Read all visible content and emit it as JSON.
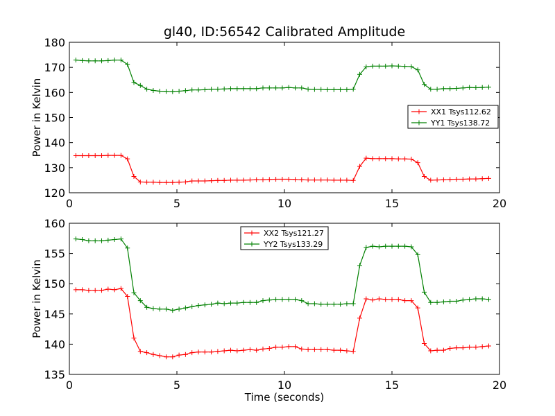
{
  "figure": {
    "title": "gl40, ID:56542 Calibrated Amplitude"
  },
  "chart_data": [
    {
      "type": "line",
      "title": "gl40, ID:56542 Calibrated Amplitude",
      "xlabel": "",
      "ylabel": "Power in Kelvin",
      "xlim": [
        0,
        20
      ],
      "ylim": [
        120,
        180
      ],
      "xticks": [
        0,
        5,
        10,
        15,
        20
      ],
      "yticks": [
        120,
        130,
        140,
        150,
        160,
        170,
        180
      ],
      "grid": false,
      "legend_position": "center-right",
      "x": [
        0.3,
        0.6,
        0.9,
        1.2,
        1.5,
        1.8,
        2.1,
        2.4,
        2.7,
        3.0,
        3.3,
        3.6,
        3.9,
        4.2,
        4.5,
        4.8,
        5.1,
        5.4,
        5.7,
        6.0,
        6.3,
        6.6,
        6.9,
        7.2,
        7.5,
        7.8,
        8.1,
        8.4,
        8.7,
        9.0,
        9.3,
        9.6,
        9.9,
        10.2,
        10.5,
        10.8,
        11.1,
        11.4,
        11.7,
        12.0,
        12.3,
        12.6,
        12.9,
        13.2,
        13.5,
        13.8,
        14.1,
        14.4,
        14.7,
        15.0,
        15.3,
        15.6,
        15.9,
        16.2,
        16.5,
        16.8,
        17.1,
        17.4,
        17.7,
        18.0,
        18.3,
        18.6,
        18.9,
        19.2,
        19.5
      ],
      "series": [
        {
          "name": "XX1 Tsys112.62",
          "color": "#ff0000",
          "values": [
            134.8,
            134.8,
            134.8,
            134.8,
            134.8,
            134.9,
            134.9,
            134.9,
            133.5,
            126.5,
            124.3,
            124.2,
            124.2,
            124.1,
            124.1,
            124.1,
            124.2,
            124.3,
            124.7,
            124.7,
            124.7,
            124.8,
            124.9,
            124.9,
            125.0,
            125.0,
            125.0,
            125.1,
            125.2,
            125.2,
            125.3,
            125.4,
            125.4,
            125.4,
            125.3,
            125.2,
            125.1,
            125.1,
            125.1,
            125.1,
            125.0,
            125.0,
            125.0,
            124.9,
            130.5,
            133.8,
            133.6,
            133.6,
            133.6,
            133.6,
            133.5,
            133.5,
            133.4,
            132.0,
            126.5,
            125.0,
            125.1,
            125.2,
            125.3,
            125.4,
            125.4,
            125.5,
            125.5,
            125.6,
            125.7
          ]
        },
        {
          "name": "YY1 Tsys138.72",
          "color": "#008000",
          "values": [
            172.9,
            172.7,
            172.6,
            172.6,
            172.6,
            172.7,
            172.9,
            172.9,
            171.2,
            164.0,
            162.8,
            161.3,
            160.8,
            160.5,
            160.4,
            160.3,
            160.5,
            160.7,
            161.0,
            161.0,
            161.1,
            161.3,
            161.3,
            161.4,
            161.5,
            161.5,
            161.5,
            161.5,
            161.5,
            161.8,
            161.8,
            161.8,
            161.8,
            162.0,
            161.8,
            161.8,
            161.3,
            161.2,
            161.2,
            161.1,
            161.1,
            161.1,
            161.1,
            161.3,
            167.2,
            170.2,
            170.5,
            170.5,
            170.5,
            170.6,
            170.5,
            170.4,
            170.3,
            169.0,
            163.2,
            161.3,
            161.3,
            161.5,
            161.5,
            161.6,
            161.8,
            162.0,
            161.9,
            162.0,
            162.1
          ]
        }
      ]
    },
    {
      "type": "line",
      "title": "",
      "xlabel": "Time (seconds)",
      "ylabel": "Power in Kelvin",
      "xlim": [
        0,
        20
      ],
      "ylim": [
        135,
        160
      ],
      "xticks": [
        0,
        5,
        10,
        15,
        20
      ],
      "yticks": [
        135,
        140,
        145,
        150,
        155,
        160
      ],
      "grid": false,
      "legend_position": "upper-center",
      "x": [
        0.3,
        0.6,
        0.9,
        1.2,
        1.5,
        1.8,
        2.1,
        2.4,
        2.7,
        3.0,
        3.3,
        3.6,
        3.9,
        4.2,
        4.5,
        4.8,
        5.1,
        5.4,
        5.7,
        6.0,
        6.3,
        6.6,
        6.9,
        7.2,
        7.5,
        7.8,
        8.1,
        8.4,
        8.7,
        9.0,
        9.3,
        9.6,
        9.9,
        10.2,
        10.5,
        10.8,
        11.1,
        11.4,
        11.7,
        12.0,
        12.3,
        12.6,
        12.9,
        13.2,
        13.5,
        13.8,
        14.1,
        14.4,
        14.7,
        15.0,
        15.3,
        15.6,
        15.9,
        16.2,
        16.5,
        16.8,
        17.1,
        17.4,
        17.7,
        18.0,
        18.3,
        18.6,
        18.9,
        19.2,
        19.5
      ],
      "series": [
        {
          "name": "XX2 Tsys121.27",
          "color": "#ff0000",
          "values": [
            149.0,
            149.0,
            148.9,
            148.9,
            148.9,
            149.1,
            149.0,
            149.2,
            147.9,
            141.0,
            138.8,
            138.6,
            138.3,
            138.1,
            137.9,
            137.9,
            138.2,
            138.3,
            138.6,
            138.7,
            138.7,
            138.7,
            138.8,
            138.9,
            139.0,
            138.9,
            139.0,
            139.1,
            139.0,
            139.2,
            139.3,
            139.5,
            139.5,
            139.6,
            139.6,
            139.2,
            139.1,
            139.1,
            139.1,
            139.1,
            139.0,
            139.0,
            138.9,
            138.8,
            144.3,
            147.5,
            147.3,
            147.5,
            147.4,
            147.4,
            147.4,
            147.2,
            147.2,
            146.0,
            140.1,
            138.9,
            139.0,
            139.0,
            139.3,
            139.4,
            139.4,
            139.5,
            139.5,
            139.6,
            139.7
          ]
        },
        {
          "name": "YY2 Tsys133.29",
          "color": "#008000",
          "values": [
            157.4,
            157.3,
            157.1,
            157.1,
            157.1,
            157.2,
            157.3,
            157.4,
            155.9,
            148.5,
            147.2,
            146.1,
            145.9,
            145.8,
            145.8,
            145.6,
            145.8,
            146.0,
            146.2,
            146.4,
            146.5,
            146.6,
            146.8,
            146.7,
            146.8,
            146.8,
            146.9,
            146.9,
            146.9,
            147.2,
            147.3,
            147.4,
            147.4,
            147.4,
            147.4,
            147.2,
            146.7,
            146.7,
            146.6,
            146.6,
            146.6,
            146.6,
            146.7,
            146.7,
            153.0,
            156.0,
            156.2,
            156.1,
            156.2,
            156.2,
            156.2,
            156.2,
            156.1,
            154.8,
            148.6,
            146.9,
            146.9,
            147.0,
            147.1,
            147.1,
            147.3,
            147.4,
            147.5,
            147.5,
            147.4
          ]
        }
      ]
    }
  ]
}
